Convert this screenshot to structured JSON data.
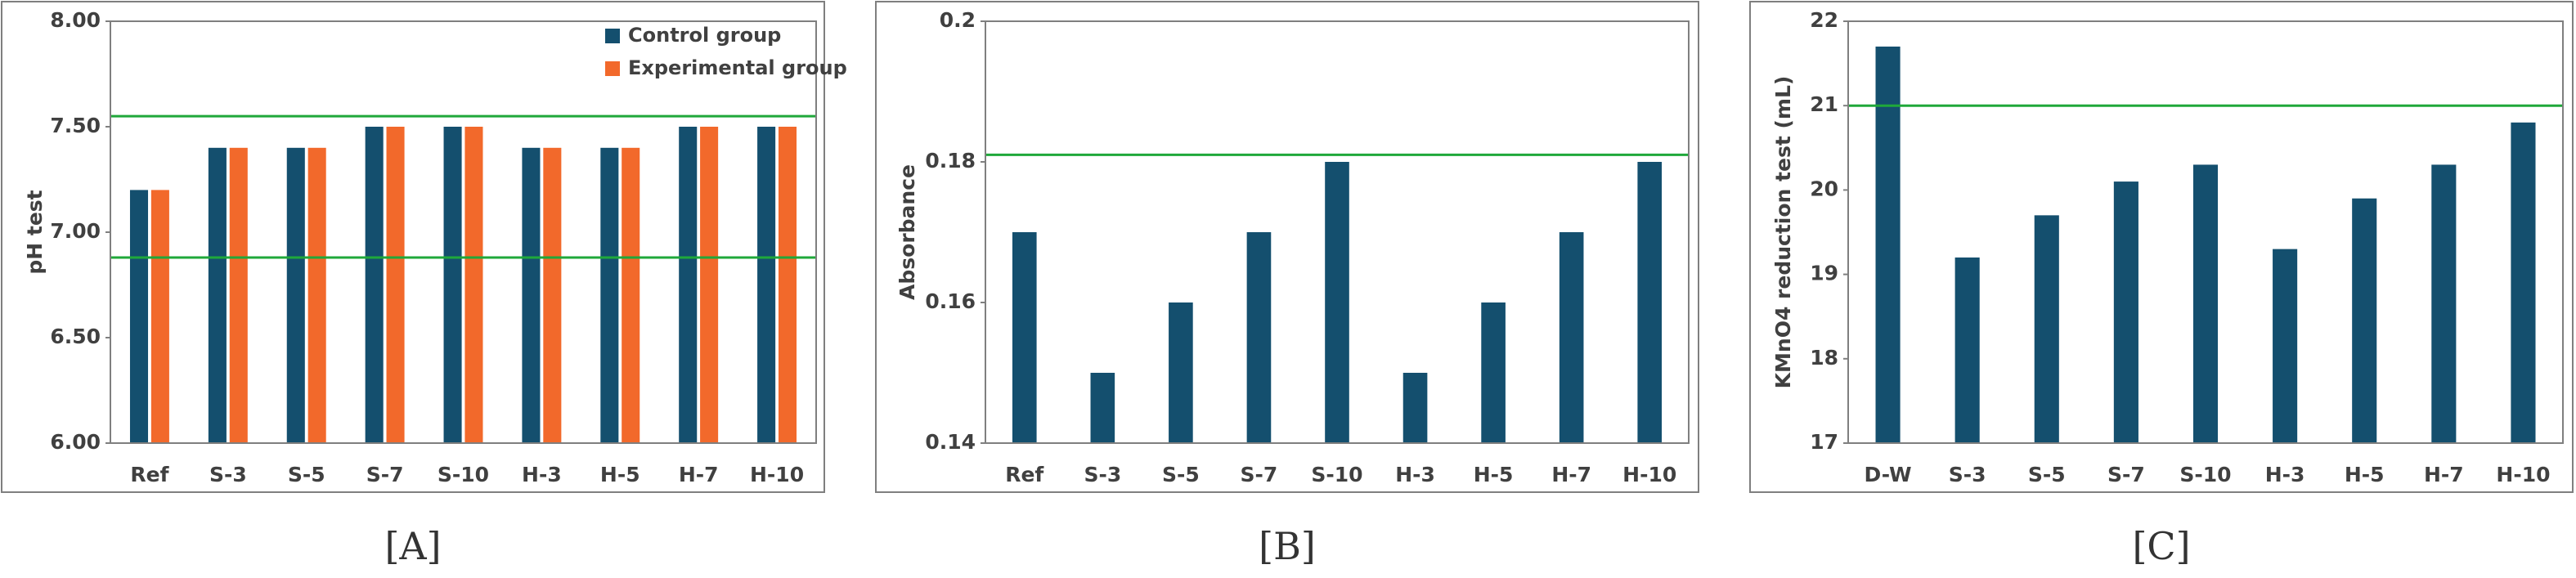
{
  "chart_data": [
    {
      "type": "bar",
      "label": "[A]",
      "ylabel": "pH test",
      "categories": [
        "Ref",
        "S-3",
        "S-5",
        "S-7",
        "S-10",
        "H-3",
        "H-5",
        "H-7",
        "H-10"
      ],
      "series": [
        {
          "name": "Control group",
          "color": "#144f6e",
          "values": [
            7.2,
            7.4,
            7.4,
            7.5,
            7.5,
            7.4,
            7.4,
            7.5,
            7.5
          ]
        },
        {
          "name": "Experimental group",
          "color": "#f2692b",
          "values": [
            7.2,
            7.4,
            7.4,
            7.5,
            7.5,
            7.4,
            7.4,
            7.5,
            7.5
          ]
        }
      ],
      "ylim": [
        6,
        8
      ],
      "yticks": [
        {
          "value": 6,
          "label": "6.00"
        },
        {
          "value": 6.5,
          "label": "6.50"
        },
        {
          "value": 7,
          "label": "7.00"
        },
        {
          "value": 7.5,
          "label": "7.50"
        },
        {
          "value": 8,
          "label": "8.00"
        }
      ],
      "reference_lines": [
        7.55,
        6.88
      ],
      "reference_color": "#1fa83a",
      "legend": "upper right"
    },
    {
      "type": "bar",
      "label": "[B]",
      "ylabel": "Absorbance",
      "categories": [
        "Ref",
        "S-3",
        "S-5",
        "S-7",
        "S-10",
        "H-3",
        "H-5",
        "H-7",
        "H-10"
      ],
      "series": [
        {
          "color": "#144f6e",
          "values": [
            0.17,
            0.15,
            0.16,
            0.17,
            0.18,
            0.15,
            0.16,
            0.17,
            0.18
          ]
        }
      ],
      "ylim": [
        0.14,
        0.2
      ],
      "yticks": [
        0.14,
        0.16,
        0.18,
        0.2
      ],
      "reference_lines": [
        0.181
      ],
      "reference_color": "#1fa83a"
    },
    {
      "type": "bar",
      "label": "[C]",
      "ylabel": "KMnO4 reduction test (mL)",
      "categories": [
        "D-W",
        "S-3",
        "S-5",
        "S-7",
        "S-10",
        "H-3",
        "H-5",
        "H-7",
        "H-10"
      ],
      "series": [
        {
          "color": "#144f6e",
          "values": [
            21.7,
            19.2,
            19.7,
            20.1,
            20.3,
            19.3,
            19.9,
            20.3,
            20.8
          ]
        }
      ],
      "ylim": [
        17,
        22
      ],
      "yticks": [
        17,
        18,
        19,
        20,
        21,
        22
      ],
      "reference_lines": [
        21
      ],
      "reference_color": "#1fa83a"
    }
  ]
}
